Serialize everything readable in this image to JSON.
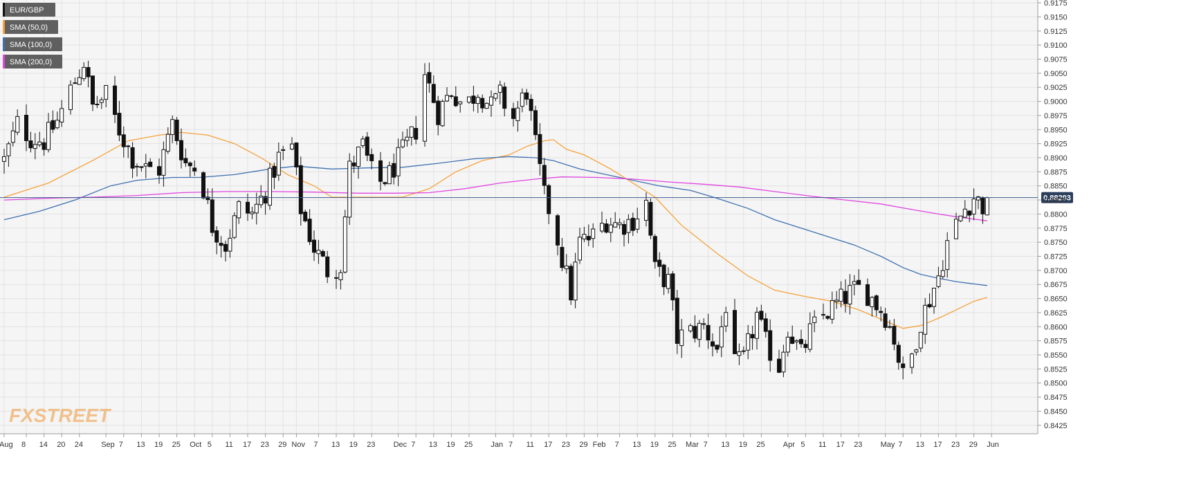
{
  "chart_data": {
    "type": "candlestick",
    "legend": [
      {
        "label": "EUR/GBP",
        "color": "#111111"
      },
      {
        "label": "SMA (50,0)",
        "color": "#f5a23a"
      },
      {
        "label": "SMA (100,0)",
        "color": "#3e6fb0"
      },
      {
        "label": "SMA (200,0)",
        "color": "#e044e0"
      }
    ],
    "last_price_label": "0.88293",
    "last_price": 0.88293,
    "ylim": [
      0.841,
      0.918
    ],
    "y_ticks": [
      "0.9175",
      "0.9150",
      "0.9125",
      "0.9100",
      "0.9075",
      "0.9050",
      "0.9025",
      "0.9000",
      "0.8975",
      "0.8950",
      "0.8925",
      "0.8900",
      "0.8875",
      "0.8850",
      "0.8825",
      "0.8800",
      "0.8775",
      "0.8750",
      "0.8725",
      "0.8700",
      "0.8675",
      "0.8650",
      "0.8625",
      "0.8600",
      "0.8575",
      "0.8550",
      "0.8525",
      "0.8500",
      "0.8475",
      "0.8450",
      "0.8425"
    ],
    "x_ticks": [
      {
        "label": "Aug",
        "bar": 0
      },
      {
        "label": "8",
        "bar": 5
      },
      {
        "label": "14",
        "bar": 9
      },
      {
        "label": "20",
        "bar": 13
      },
      {
        "label": "24",
        "bar": 17
      },
      {
        "label": "Sep",
        "bar": 23
      },
      {
        "label": "7",
        "bar": 27
      },
      {
        "label": "13",
        "bar": 31
      },
      {
        "label": "19",
        "bar": 35
      },
      {
        "label": "25",
        "bar": 39
      },
      {
        "label": "Oct",
        "bar": 43
      },
      {
        "label": "5",
        "bar": 47
      },
      {
        "label": "11",
        "bar": 51
      },
      {
        "label": "17",
        "bar": 55
      },
      {
        "label": "23",
        "bar": 59
      },
      {
        "label": "29",
        "bar": 63
      },
      {
        "label": "Nov",
        "bar": 66
      },
      {
        "label": "7",
        "bar": 71
      },
      {
        "label": "13",
        "bar": 75
      },
      {
        "label": "19",
        "bar": 79
      },
      {
        "label": "23",
        "bar": 83
      },
      {
        "label": "Dec",
        "bar": 89
      },
      {
        "label": "7",
        "bar": 93
      },
      {
        "label": "13",
        "bar": 97
      },
      {
        "label": "19",
        "bar": 101
      },
      {
        "label": "25",
        "bar": 105
      },
      {
        "label": "Jan",
        "bar": 111
      },
      {
        "label": "7",
        "bar": 115
      },
      {
        "label": "11",
        "bar": 119
      },
      {
        "label": "17",
        "bar": 123
      },
      {
        "label": "23",
        "bar": 127
      },
      {
        "label": "29",
        "bar": 131
      },
      {
        "label": "Feb",
        "bar": 134
      },
      {
        "label": "7",
        "bar": 139
      },
      {
        "label": "13",
        "bar": 143
      },
      {
        "label": "19",
        "bar": 147
      },
      {
        "label": "25",
        "bar": 151
      },
      {
        "label": "Mar",
        "bar": 155
      },
      {
        "label": "7",
        "bar": 159
      },
      {
        "label": "13",
        "bar": 163
      },
      {
        "label": "19",
        "bar": 167
      },
      {
        "label": "25",
        "bar": 171
      },
      {
        "label": "Apr",
        "bar": 177
      },
      {
        "label": "5",
        "bar": 181
      },
      {
        "label": "11",
        "bar": 185
      },
      {
        "label": "17",
        "bar": 189
      },
      {
        "label": "23",
        "bar": 193
      },
      {
        "label": "May",
        "bar": 199
      },
      {
        "label": "7",
        "bar": 203
      },
      {
        "label": "13",
        "bar": 207
      },
      {
        "label": "17",
        "bar": 211
      },
      {
        "label": "23",
        "bar": 215
      },
      {
        "label": "29",
        "bar": 219
      },
      {
        "label": "Jun",
        "bar": 223
      }
    ],
    "bar_count": 225,
    "anchors": [
      [
        0,
        0.8895
      ],
      [
        3,
        0.896
      ],
      [
        6,
        0.8935
      ],
      [
        9,
        0.893
      ],
      [
        12,
        0.8965
      ],
      [
        15,
        0.902
      ],
      [
        18,
        0.907
      ],
      [
        20,
        0.899
      ],
      [
        23,
        0.901
      ],
      [
        26,
        0.895
      ],
      [
        29,
        0.89
      ],
      [
        32,
        0.888
      ],
      [
        35,
        0.888
      ],
      [
        38,
        0.896
      ],
      [
        41,
        0.889
      ],
      [
        44,
        0.888
      ],
      [
        47,
        0.878
      ],
      [
        50,
        0.8745
      ],
      [
        53,
        0.881
      ],
      [
        56,
        0.88
      ],
      [
        59,
        0.884
      ],
      [
        62,
        0.89
      ],
      [
        65,
        0.892
      ],
      [
        67,
        0.881
      ],
      [
        70,
        0.874
      ],
      [
        73,
        0.87
      ],
      [
        76,
        0.871
      ],
      [
        78,
        0.888
      ],
      [
        81,
        0.892
      ],
      [
        84,
        0.885
      ],
      [
        87,
        0.887
      ],
      [
        90,
        0.891
      ],
      [
        93,
        0.895
      ],
      [
        95,
        0.905
      ],
      [
        98,
        0.898
      ],
      [
        101,
        0.902
      ],
      [
        104,
        0.899
      ],
      [
        107,
        0.902
      ],
      [
        110,
        0.899
      ],
      [
        112,
        0.901
      ],
      [
        115,
        0.897
      ],
      [
        118,
        0.902
      ],
      [
        120,
        0.892
      ],
      [
        122,
        0.883
      ],
      [
        124,
        0.879
      ],
      [
        126,
        0.872
      ],
      [
        128,
        0.866
      ],
      [
        130,
        0.875
      ],
      [
        133,
        0.876
      ],
      [
        136,
        0.879
      ],
      [
        139,
        0.878
      ],
      [
        142,
        0.879
      ],
      [
        145,
        0.882
      ],
      [
        147,
        0.87
      ],
      [
        150,
        0.868
      ],
      [
        152,
        0.858
      ],
      [
        155,
        0.859
      ],
      [
        158,
        0.86
      ],
      [
        161,
        0.856
      ],
      [
        163,
        0.864
      ],
      [
        165,
        0.853
      ],
      [
        167,
        0.854
      ],
      [
        170,
        0.862
      ],
      [
        172,
        0.857
      ],
      [
        175,
        0.853
      ],
      [
        177,
        0.86
      ],
      [
        180,
        0.855
      ],
      [
        182,
        0.859
      ],
      [
        185,
        0.862
      ],
      [
        188,
        0.864
      ],
      [
        191,
        0.866
      ],
      [
        194,
        0.867
      ],
      [
        197,
        0.864
      ],
      [
        199,
        0.862
      ],
      [
        201,
        0.858
      ],
      [
        203,
        0.851
      ],
      [
        205,
        0.855
      ],
      [
        207,
        0.861
      ],
      [
        209,
        0.865
      ],
      [
        211,
        0.869
      ],
      [
        213,
        0.875
      ],
      [
        215,
        0.878
      ],
      [
        217,
        0.881
      ],
      [
        219,
        0.883
      ],
      [
        221,
        0.8815
      ],
      [
        222,
        0.8829
      ]
    ],
    "series": [
      {
        "name": "SMA (50,0)",
        "color": "#f5a23a",
        "points": [
          [
            0,
            0.883
          ],
          [
            10,
            0.8855
          ],
          [
            20,
            0.8895
          ],
          [
            28,
            0.893
          ],
          [
            35,
            0.894
          ],
          [
            40,
            0.8945
          ],
          [
            46,
            0.894
          ],
          [
            52,
            0.8925
          ],
          [
            58,
            0.89
          ],
          [
            64,
            0.887
          ],
          [
            70,
            0.885
          ],
          [
            74,
            0.883
          ],
          [
            78,
            0.883
          ],
          [
            84,
            0.883
          ],
          [
            90,
            0.883
          ],
          [
            96,
            0.8845
          ],
          [
            102,
            0.8875
          ],
          [
            108,
            0.8895
          ],
          [
            114,
            0.8905
          ],
          [
            118,
            0.892
          ],
          [
            122,
            0.893
          ],
          [
            124,
            0.8932
          ],
          [
            127,
            0.8915
          ],
          [
            131,
            0.8905
          ],
          [
            137,
            0.888
          ],
          [
            141,
            0.886
          ],
          [
            147,
            0.883
          ],
          [
            153,
            0.878
          ],
          [
            161,
            0.873
          ],
          [
            168,
            0.869
          ],
          [
            174,
            0.8665
          ],
          [
            180,
            0.8655
          ],
          [
            187,
            0.8645
          ],
          [
            193,
            0.863
          ],
          [
            199,
            0.861
          ],
          [
            203,
            0.8597
          ],
          [
            207,
            0.8602
          ],
          [
            211,
            0.8615
          ],
          [
            215,
            0.863
          ],
          [
            219,
            0.8645
          ],
          [
            222,
            0.8652
          ]
        ]
      },
      {
        "name": "SMA (100,0)",
        "color": "#3e6fb0",
        "points": [
          [
            0,
            0.879
          ],
          [
            8,
            0.8805
          ],
          [
            16,
            0.8825
          ],
          [
            24,
            0.885
          ],
          [
            30,
            0.886
          ],
          [
            38,
            0.8865
          ],
          [
            44,
            0.8865
          ],
          [
            52,
            0.887
          ],
          [
            60,
            0.888
          ],
          [
            66,
            0.8885
          ],
          [
            74,
            0.888
          ],
          [
            82,
            0.8882
          ],
          [
            90,
            0.8883
          ],
          [
            98,
            0.889
          ],
          [
            106,
            0.8898
          ],
          [
            114,
            0.8902
          ],
          [
            120,
            0.89
          ],
          [
            124,
            0.8895
          ],
          [
            130,
            0.888
          ],
          [
            136,
            0.887
          ],
          [
            142,
            0.886
          ],
          [
            148,
            0.885
          ],
          [
            155,
            0.8842
          ],
          [
            161,
            0.8828
          ],
          [
            168,
            0.881
          ],
          [
            174,
            0.879
          ],
          [
            180,
            0.8775
          ],
          [
            186,
            0.876
          ],
          [
            192,
            0.8745
          ],
          [
            198,
            0.8725
          ],
          [
            203,
            0.8705
          ],
          [
            207,
            0.8693
          ],
          [
            211,
            0.8686
          ],
          [
            215,
            0.868
          ],
          [
            219,
            0.8676
          ],
          [
            222,
            0.8673
          ]
        ]
      },
      {
        "name": "SMA (200,0)",
        "color": "#e044e0",
        "points": [
          [
            0,
            0.8825
          ],
          [
            10,
            0.8828
          ],
          [
            20,
            0.883
          ],
          [
            30,
            0.8833
          ],
          [
            40,
            0.8838
          ],
          [
            50,
            0.884
          ],
          [
            60,
            0.884
          ],
          [
            70,
            0.8839
          ],
          [
            80,
            0.8837
          ],
          [
            88,
            0.8837
          ],
          [
            96,
            0.8838
          ],
          [
            104,
            0.8845
          ],
          [
            112,
            0.8855
          ],
          [
            120,
            0.8862
          ],
          [
            126,
            0.8866
          ],
          [
            134,
            0.8865
          ],
          [
            142,
            0.8862
          ],
          [
            150,
            0.8857
          ],
          [
            158,
            0.8853
          ],
          [
            166,
            0.8848
          ],
          [
            174,
            0.884
          ],
          [
            182,
            0.8832
          ],
          [
            190,
            0.8825
          ],
          [
            198,
            0.8818
          ],
          [
            205,
            0.8808
          ],
          [
            211,
            0.88
          ],
          [
            216,
            0.8794
          ],
          [
            222,
            0.8788
          ]
        ]
      }
    ]
  },
  "watermark": {
    "text_fx": "FX",
    "text_street": "STREET",
    "color": "#f0b87a"
  }
}
